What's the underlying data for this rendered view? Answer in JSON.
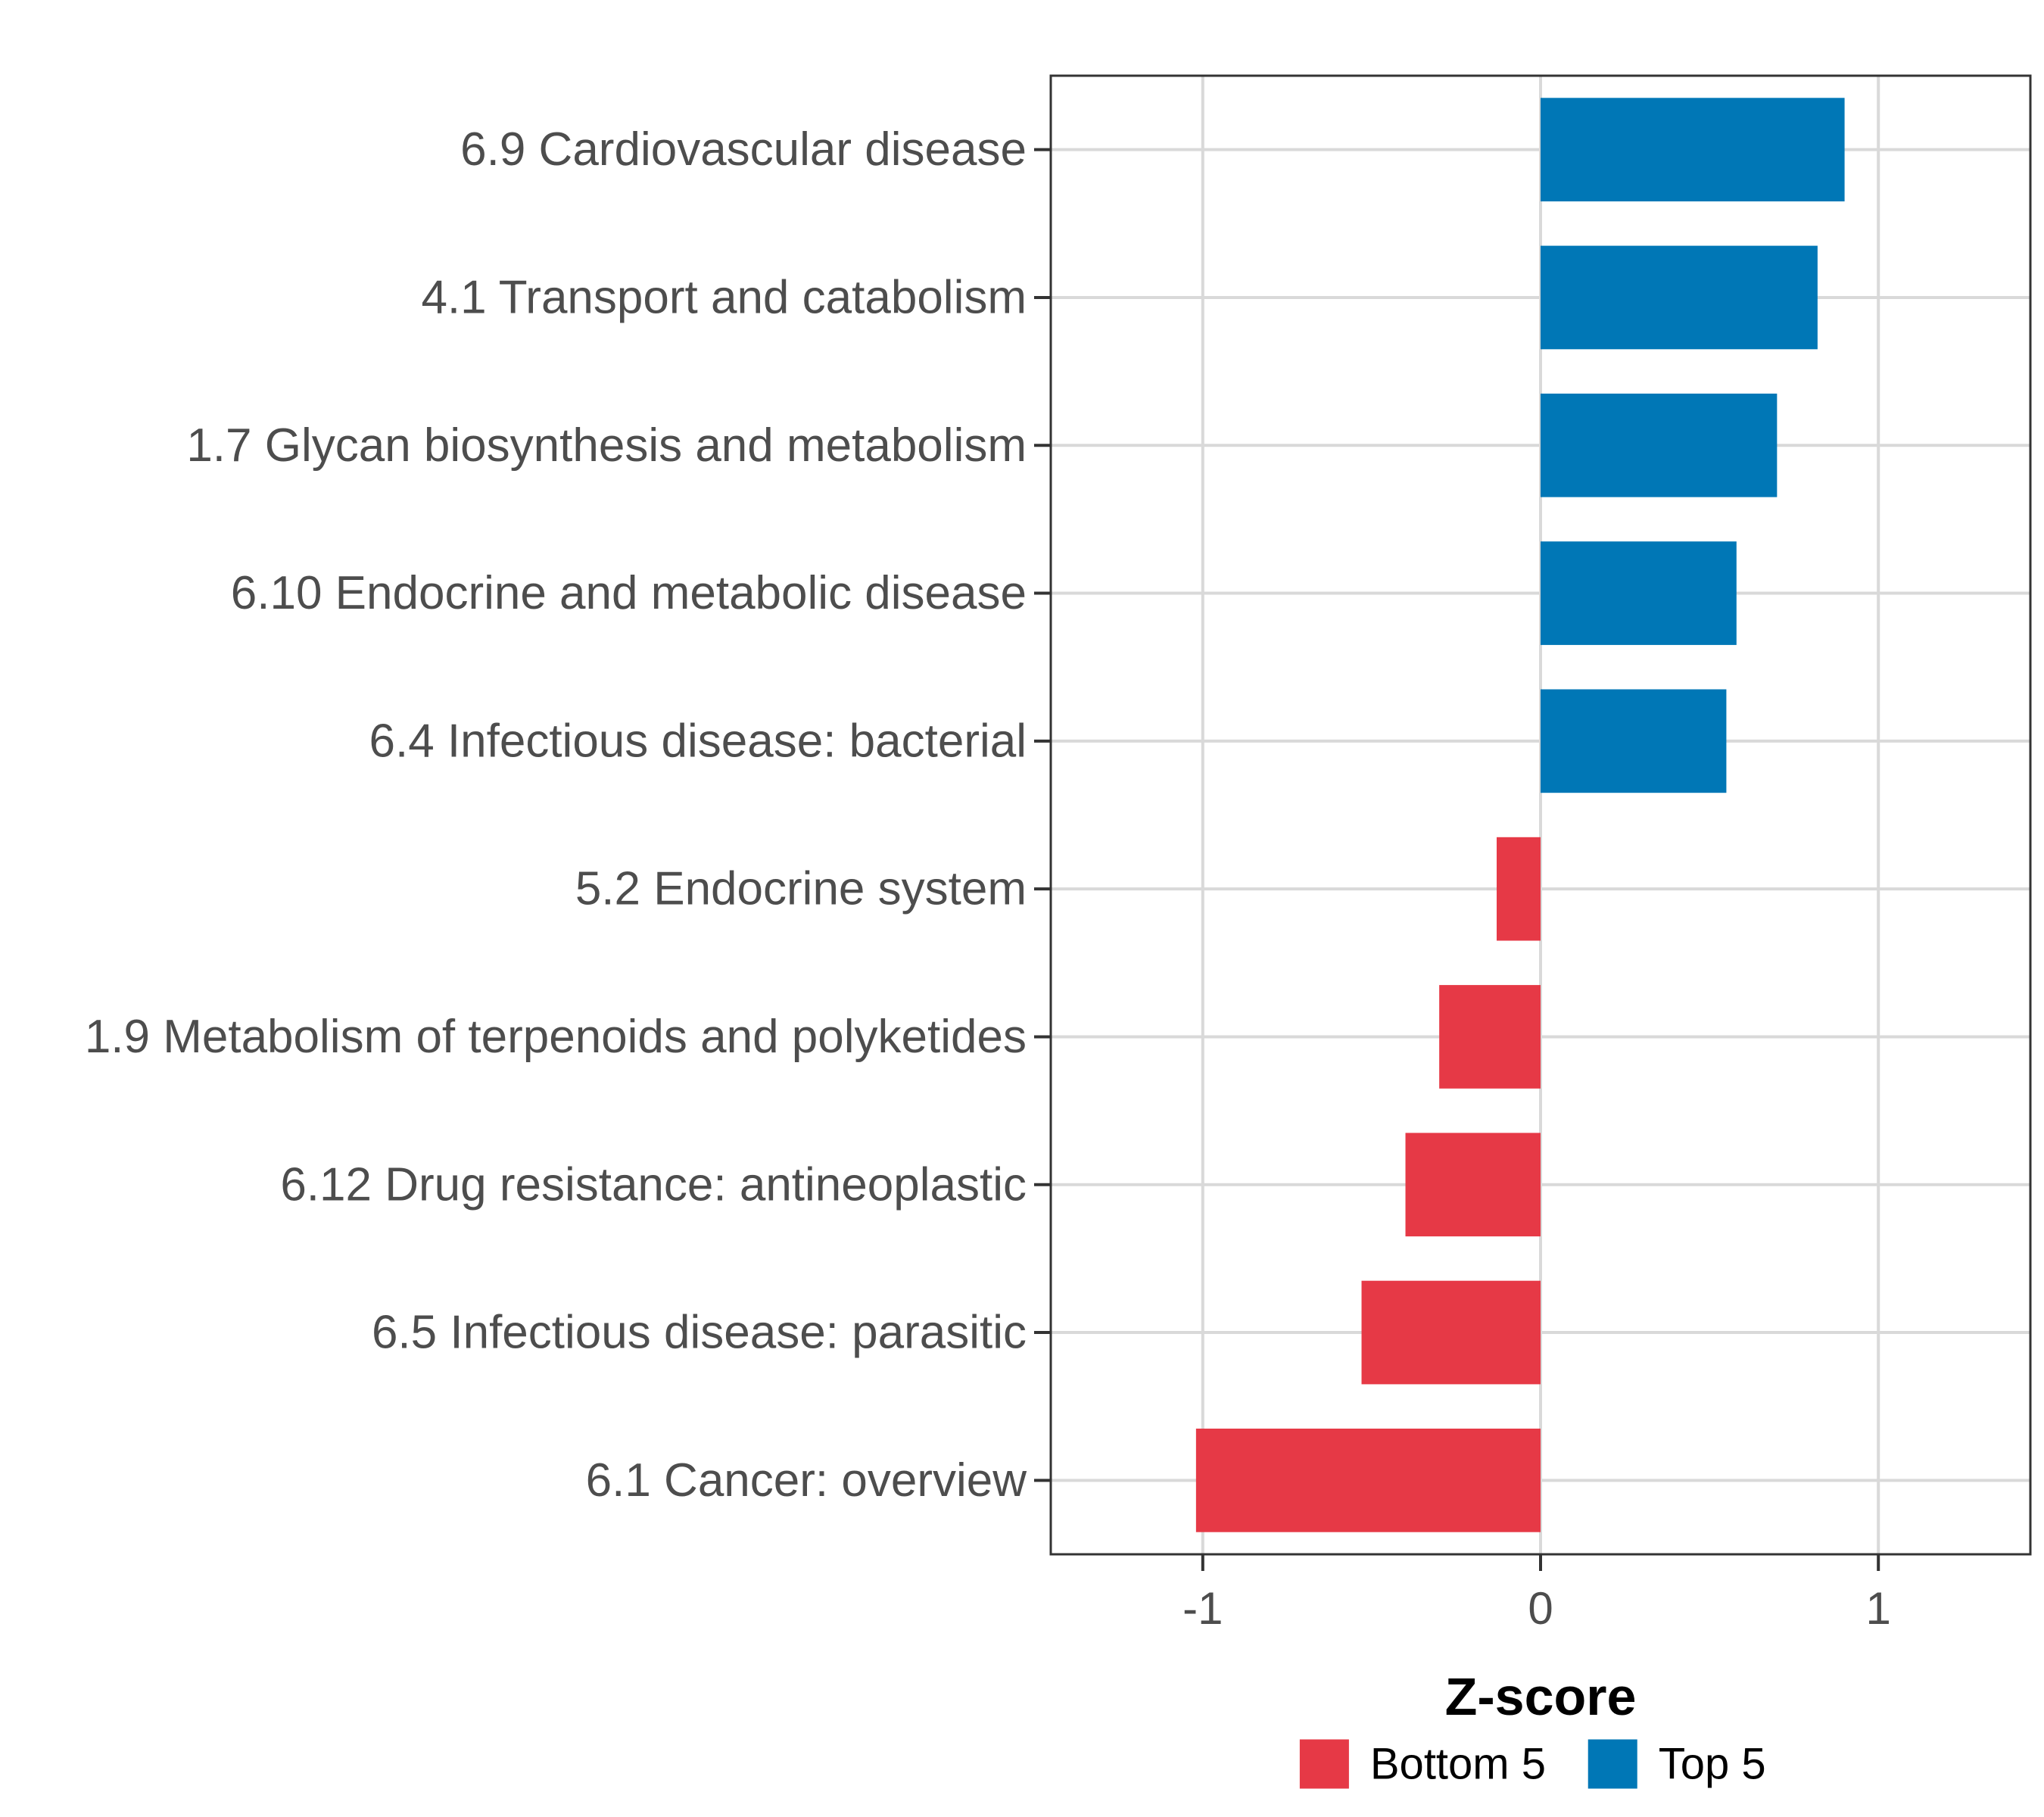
{
  "chart_data": {
    "type": "bar",
    "orientation": "horizontal",
    "title": "",
    "xlabel": "Z-score",
    "ylabel": "",
    "xlim": [
      -1.45,
      1.45
    ],
    "xticks": [
      -1,
      0,
      1
    ],
    "xtick_labels": [
      "-1",
      "0",
      "1"
    ],
    "grid": true,
    "legend_position": "bottom",
    "categories": [
      "6.9 Cardiovascular disease",
      "4.1 Transport and catabolism",
      "1.7 Glycan biosynthesis and metabolism",
      "6.10 Endocrine and metabolic disease",
      "6.4 Infectious disease: bacterial",
      "5.2 Endocrine system",
      "1.9 Metabolism of terpenoids and polyketides",
      "6.12 Drug resistance: antineoplastic",
      "6.5 Infectious disease: parasitic",
      "6.1 Cancer: overview"
    ],
    "values": [
      0.9,
      0.82,
      0.7,
      0.58,
      0.55,
      -0.13,
      -0.3,
      -0.4,
      -0.53,
      -1.02
    ],
    "groups": [
      "Top 5",
      "Top 5",
      "Top 5",
      "Top 5",
      "Top 5",
      "Bottom 5",
      "Bottom 5",
      "Bottom 5",
      "Bottom 5",
      "Bottom 5"
    ],
    "legend": [
      {
        "name": "Bottom 5",
        "color": "#e63946"
      },
      {
        "name": "Top 5",
        "color": "#0077b6"
      }
    ]
  }
}
